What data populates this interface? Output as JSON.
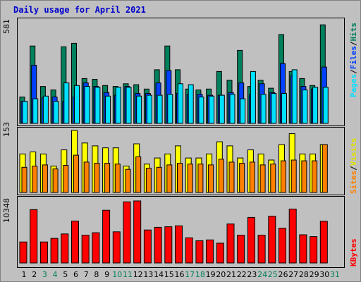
{
  "title": "Daily usage for April 2021",
  "colors": {
    "background": "#c0c0c0",
    "title": "#0000cc",
    "hits": "#00805c",
    "files": "#0040ff",
    "pages": "#00e0ff",
    "visits": "#ffff00",
    "sites": "#ff8000",
    "kbytes": "#ff0000",
    "weekend_label": "#00805c"
  },
  "panels": {
    "top": {
      "max_label": "581",
      "legend": {
        "pages": "Pages",
        "files": "Files",
        "hits": "Hits",
        "sep": "/"
      }
    },
    "middle": {
      "max_label": "153",
      "legend": {
        "sites": "Sites",
        "visits": "Visits",
        "sep": "/"
      }
    },
    "bottom": {
      "max_label": "10348",
      "legend": {
        "kbytes": "KBytes"
      }
    }
  },
  "chart_data": {
    "type": "bar",
    "title": "Daily usage for April 2021",
    "categories": [
      "1",
      "2",
      "3",
      "4",
      "5",
      "6",
      "7",
      "8",
      "9",
      "10",
      "11",
      "12",
      "13",
      "14",
      "15",
      "16",
      "17",
      "18",
      "19",
      "20",
      "21",
      "22",
      "23",
      "24",
      "25",
      "26",
      "27",
      "28",
      "29",
      "30",
      "31"
    ],
    "weekend_days": [
      "3",
      "4",
      "10",
      "11",
      "17",
      "18",
      "24",
      "25",
      "31"
    ],
    "charts": [
      {
        "ymax": 581,
        "series": [
          {
            "name": "Hits",
            "values": [
              150,
              440,
              210,
              190,
              435,
              455,
              255,
              250,
              215,
              210,
              225,
              220,
              195,
              305,
              440,
              305,
              195,
              190,
              195,
              295,
              245,
              415,
              210,
              245,
              200,
              505,
              295,
              255,
              215,
              560,
              0
            ]
          },
          {
            "name": "Files",
            "values": [
              125,
              330,
              145,
              150,
              125,
              150,
              230,
              210,
              175,
              160,
              210,
              170,
              170,
              230,
              300,
              170,
              165,
              165,
              160,
              160,
              175,
              230,
              165,
              225,
              175,
              340,
              270,
              210,
              195,
              320,
              0
            ]
          },
          {
            "name": "Pages",
            "values": [
              125,
              140,
              155,
              125,
              230,
              215,
              210,
              205,
              155,
              205,
              205,
              155,
              160,
              160,
              165,
              225,
              220,
              150,
              155,
              160,
              165,
              140,
              295,
              165,
              170,
              170,
              305,
              190,
              205,
              205,
              0
            ]
          }
        ]
      },
      {
        "ymax": 153,
        "series": [
          {
            "name": "Visits",
            "values": [
              95,
              100,
              95,
              65,
              105,
              153,
              122,
              115,
              110,
              110,
              65,
              120,
              70,
              85,
              95,
              115,
              85,
              85,
              95,
              125,
              115,
              85,
              105,
              95,
              80,
              118,
              145,
              95,
              95,
              118,
              0
            ]
          },
          {
            "name": "Sites",
            "values": [
              62,
              65,
              68,
              58,
              67,
              92,
              75,
              72,
              72,
              70,
              57,
              88,
              60,
              62,
              68,
              72,
              70,
              70,
              68,
              82,
              75,
              72,
              75,
              68,
              70,
              78,
              80,
              78,
              78,
              118,
              0
            ]
          }
        ]
      },
      {
        "ymax": 10348,
        "series": [
          {
            "name": "KBytes",
            "values": [
              3500,
              8900,
              3500,
              4100,
              4850,
              7000,
              4650,
              5050,
              8800,
              5200,
              10200,
              10348,
              5500,
              5950,
              6050,
              6200,
              4200,
              3700,
              3850,
              3300,
              6500,
              4650,
              7600,
              4650,
              7800,
              5800,
              9000,
              4700,
              4400,
              6950,
              0
            ]
          }
        ]
      }
    ]
  }
}
